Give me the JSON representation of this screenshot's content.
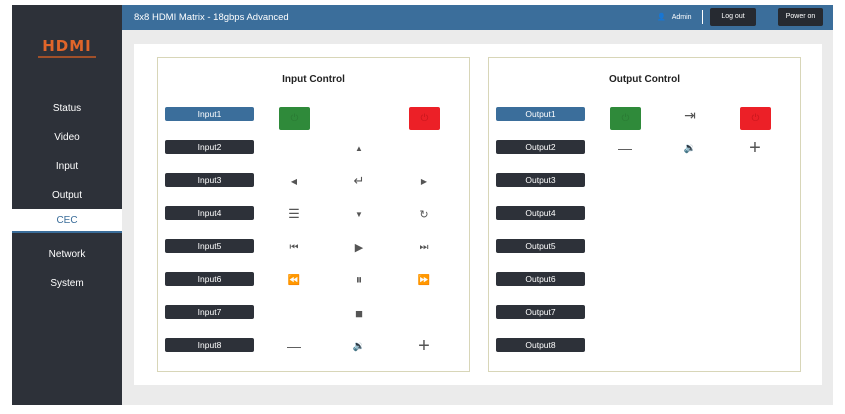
{
  "app": {
    "title": "8x8 HDMI Matrix - 18gbps Advanced",
    "logo": "HDMI",
    "user": "Admin",
    "logout": "Log out",
    "power_on": "Power on"
  },
  "sidebar": {
    "items": [
      {
        "label": "Status"
      },
      {
        "label": "Video"
      },
      {
        "label": "Input"
      },
      {
        "label": "Output"
      },
      {
        "label": "CEC",
        "active": true
      },
      {
        "label": "Network"
      },
      {
        "label": "System"
      }
    ]
  },
  "input_control": {
    "title": "Input Control",
    "sources": [
      "Input1",
      "Input2",
      "Input3",
      "Input4",
      "Input5",
      "Input6",
      "Input7",
      "Input8"
    ],
    "selected": "Input1"
  },
  "output_control": {
    "title": "Output Control",
    "sources": [
      "Output1",
      "Output2",
      "Output3",
      "Output4",
      "Output5",
      "Output6",
      "Output7",
      "Output8"
    ],
    "selected": "Output1"
  },
  "colors": {
    "accent": "#3b6e9b",
    "sidebar": "#2d3139",
    "power_on": "#2f8a3a",
    "power_off": "#ec2027"
  }
}
